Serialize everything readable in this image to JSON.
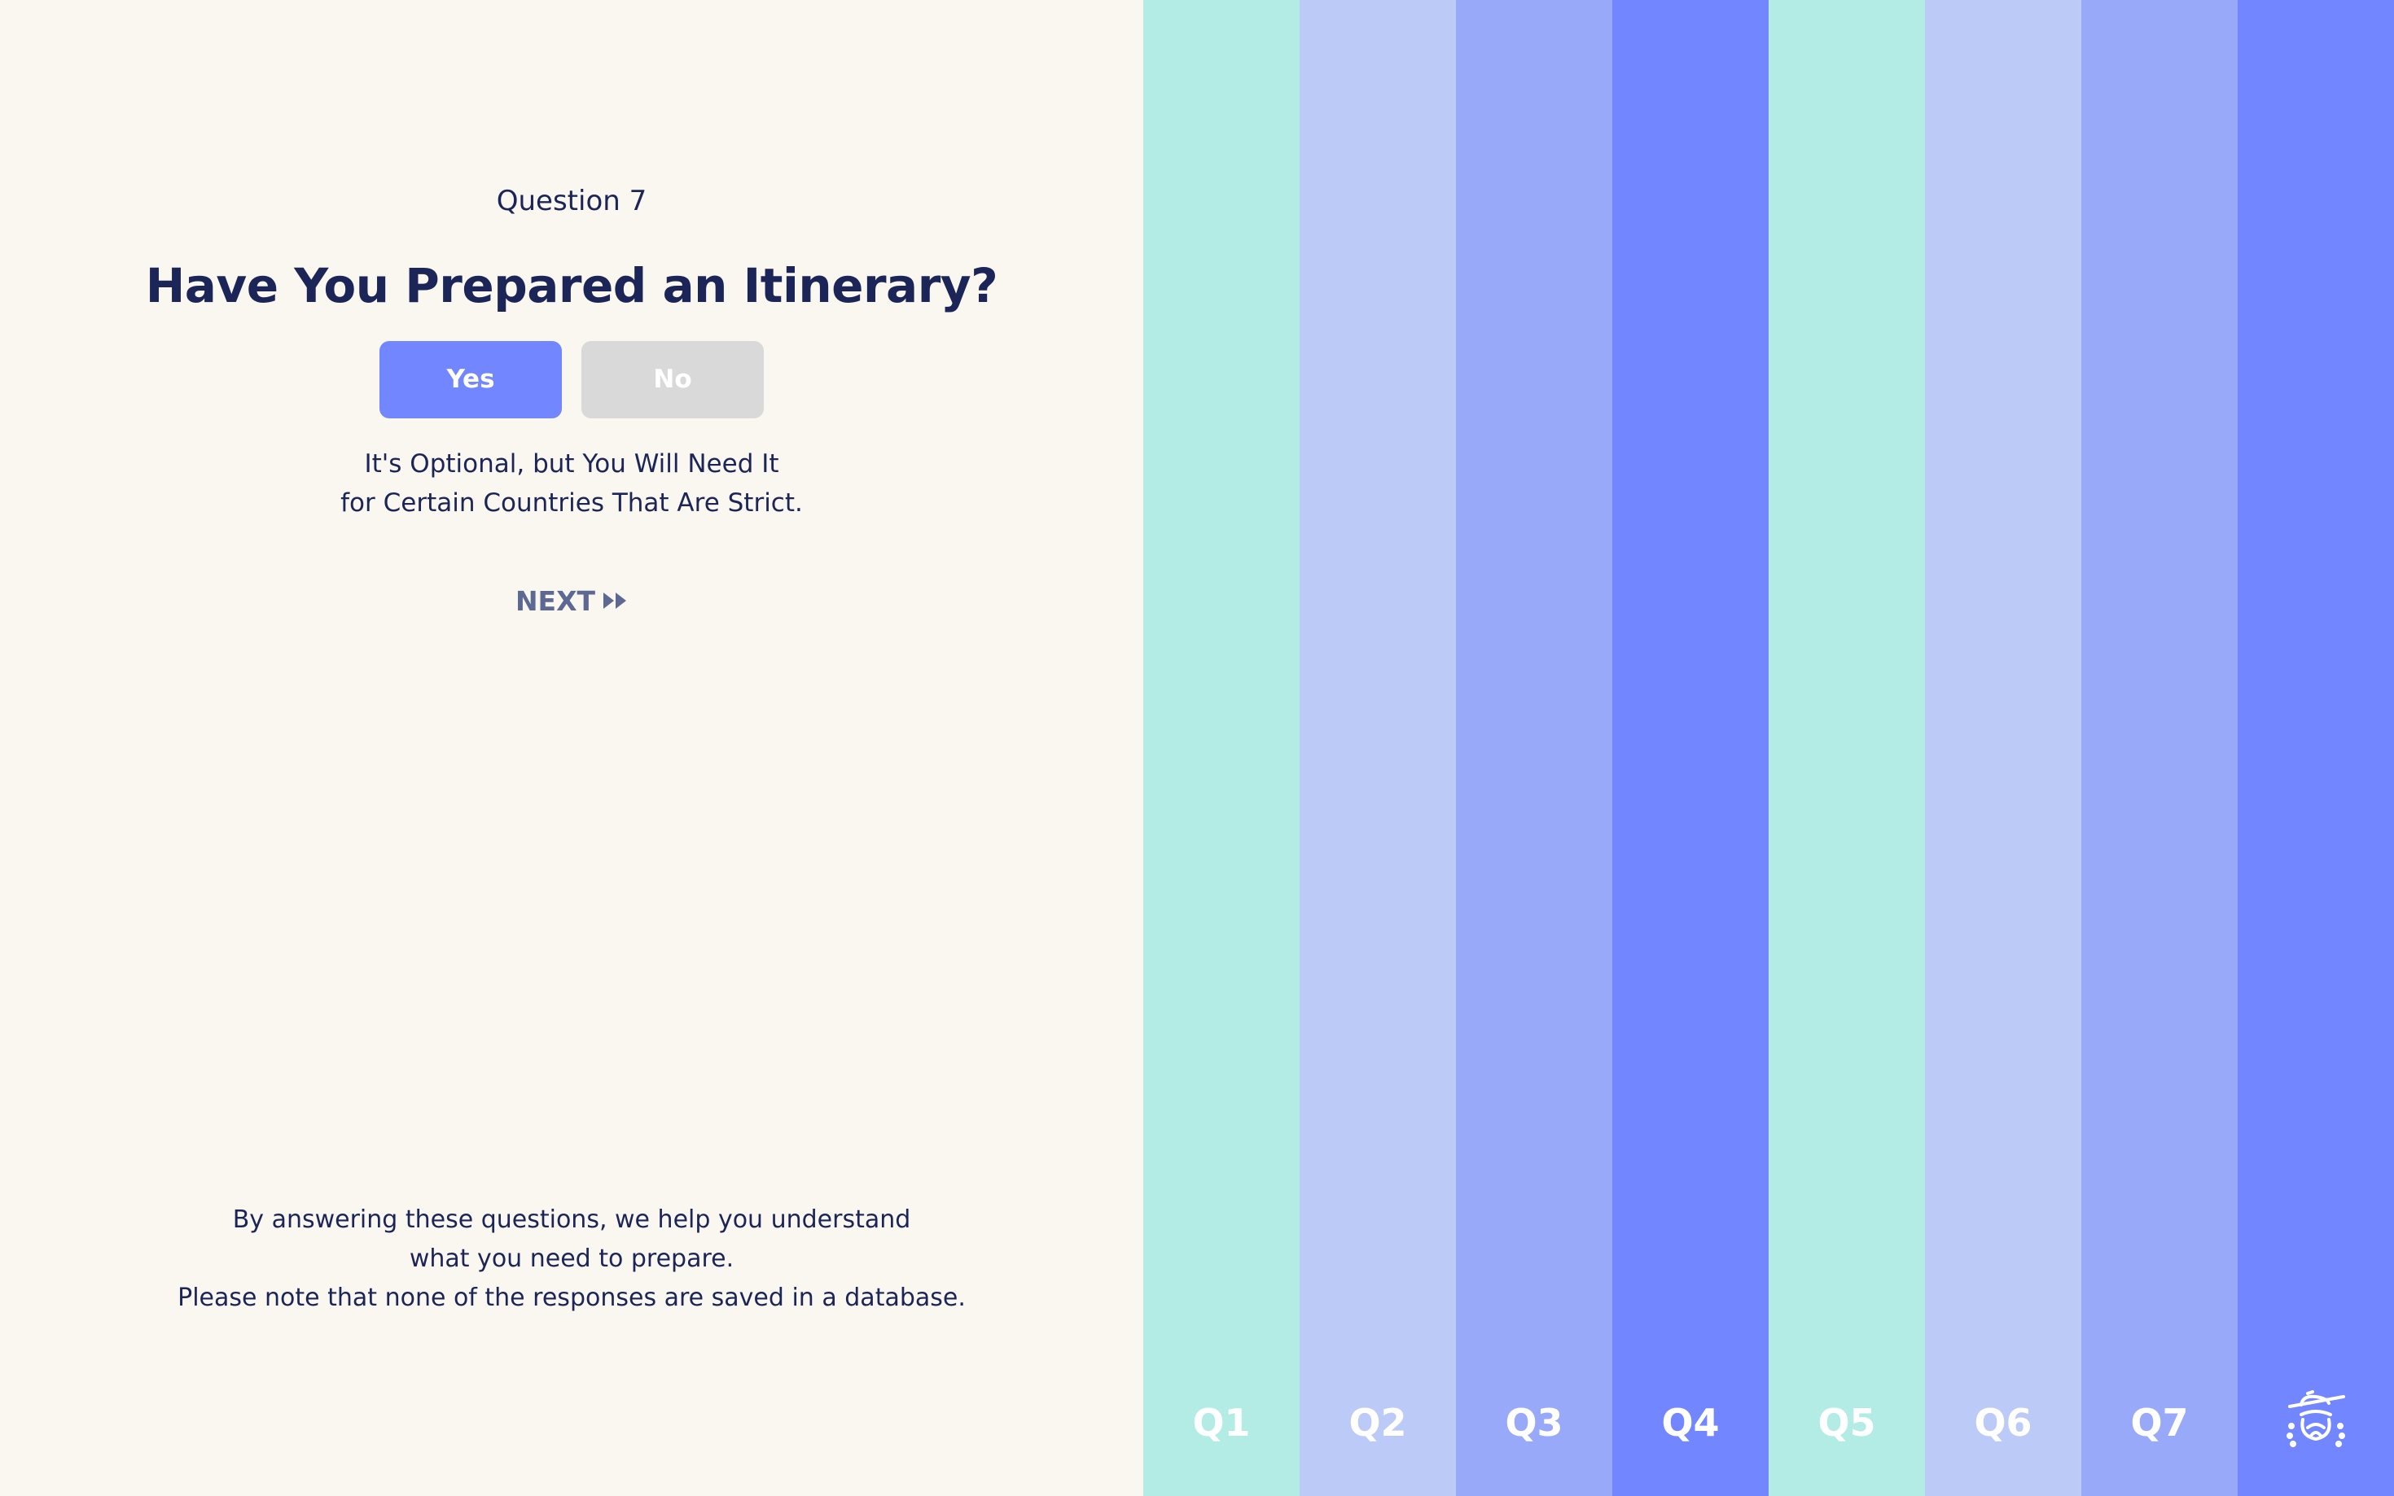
{
  "question": {
    "number_label": "Question 7",
    "title": "Have You Prepared an Itinerary?",
    "answers": {
      "yes_label": "Yes",
      "no_label": "No",
      "selected": "Yes"
    },
    "hint_line1": "It's Optional, but You Will Need It",
    "hint_line2": "for Certain Countries That Are Strict.",
    "next_label": "NEXT",
    "next_icon": "fast-forward-icon"
  },
  "footer": {
    "line1": "By answering these questions, we help you understand",
    "line2": "what you need to prepare.",
    "line3": "Please note that none of the responses are saved in a database."
  },
  "progress_columns": [
    {
      "label": "Q1",
      "color": "#b2ece4"
    },
    {
      "label": "Q2",
      "color": "#bbcaf7"
    },
    {
      "label": "Q3",
      "color": "#99a9f9"
    },
    {
      "label": "Q4",
      "color": "#7286ff"
    },
    {
      "label": "Q5",
      "color": "#b2ece4"
    },
    {
      "label": "Q6",
      "color": "#bbcaf7"
    },
    {
      "label": "Q7",
      "color": "#99a9f9"
    },
    {
      "label": "",
      "color": "#7286ff",
      "icon": "traveler-logo-icon"
    }
  ],
  "colors": {
    "background": "#faf7f0",
    "text": "#1b2557",
    "accent": "#7286ff",
    "inactive_button": "#d9d9d9",
    "next_text": "#5d6893"
  }
}
